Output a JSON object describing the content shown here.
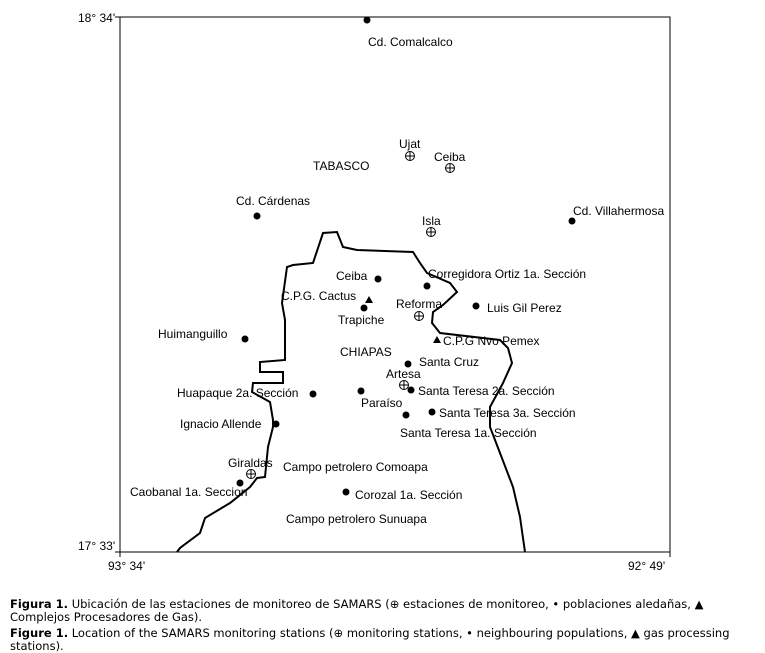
{
  "axes": {
    "lat_top": "18° 34'",
    "lat_bottom": "17° 33'",
    "lon_left": "93° 34'",
    "lon_right": "92° 49'"
  },
  "regions": [
    "TABASCO",
    "CHIAPAS"
  ],
  "legend_symbols": {
    "monitoring_station": "circle-plus",
    "population": "filled-circle",
    "gas_complex": "filled-triangle"
  },
  "places": [
    {
      "name": "Cd. Comalcalco",
      "type": "population"
    },
    {
      "name": "Ujat",
      "type": "monitoring_station"
    },
    {
      "name": "Ceiba",
      "type": "monitoring_station"
    },
    {
      "name": "Cd. Cárdenas",
      "type": "population"
    },
    {
      "name": "Isla",
      "type": "monitoring_station"
    },
    {
      "name": "Cd. Villahermosa",
      "type": "population"
    },
    {
      "name": "Ceiba",
      "type": "population"
    },
    {
      "name": "Corregidora Ortiz 1a. Sección",
      "type": "population"
    },
    {
      "name": "C.P.G. Cactus",
      "type": "gas_complex"
    },
    {
      "name": "Trapiche",
      "type": "population"
    },
    {
      "name": "Reforma",
      "type": "monitoring_station"
    },
    {
      "name": "Luis Gil Perez",
      "type": "population"
    },
    {
      "name": "Huimanguillo",
      "type": "population"
    },
    {
      "name": "C.P.G Nvo Pemex",
      "type": "gas_complex"
    },
    {
      "name": "Santa Cruz",
      "type": "population"
    },
    {
      "name": "Artesa",
      "type": "monitoring_station"
    },
    {
      "name": "Santa Teresa 2a. Sección",
      "type": "population"
    },
    {
      "name": "Huapaque 2a. Sección",
      "type": "population"
    },
    {
      "name": "Paraíso",
      "type": "population"
    },
    {
      "name": "Santa Teresa 3a. Sección",
      "type": "population"
    },
    {
      "name": "Santa Teresa 1a. Sección",
      "type": "population"
    },
    {
      "name": "Ignacio Allende",
      "type": "population"
    },
    {
      "name": "Giraldas",
      "type": "monitoring_station"
    },
    {
      "name": "Caobanal 1a. Seccion",
      "type": "population"
    },
    {
      "name": "Corozal 1a. Sección",
      "type": "population"
    }
  ],
  "areas": [
    "Campo petrolero Comoapa",
    "Campo petrolero Sunuapa"
  ],
  "caption": {
    "es_label": "Figura 1.",
    "es_text": "Ubicación de las estaciones de monitoreo de SAMARS (⊕ estaciones de monitoreo, • poblaciones aledañas, ▲ Complejos Procesadores de Gas).",
    "en_label": "Figure 1.",
    "en_text": "Location of the SAMARS monitoring stations (⊕ monitoring stations, • neighbouring populations, ▲ gas processing stations)."
  }
}
